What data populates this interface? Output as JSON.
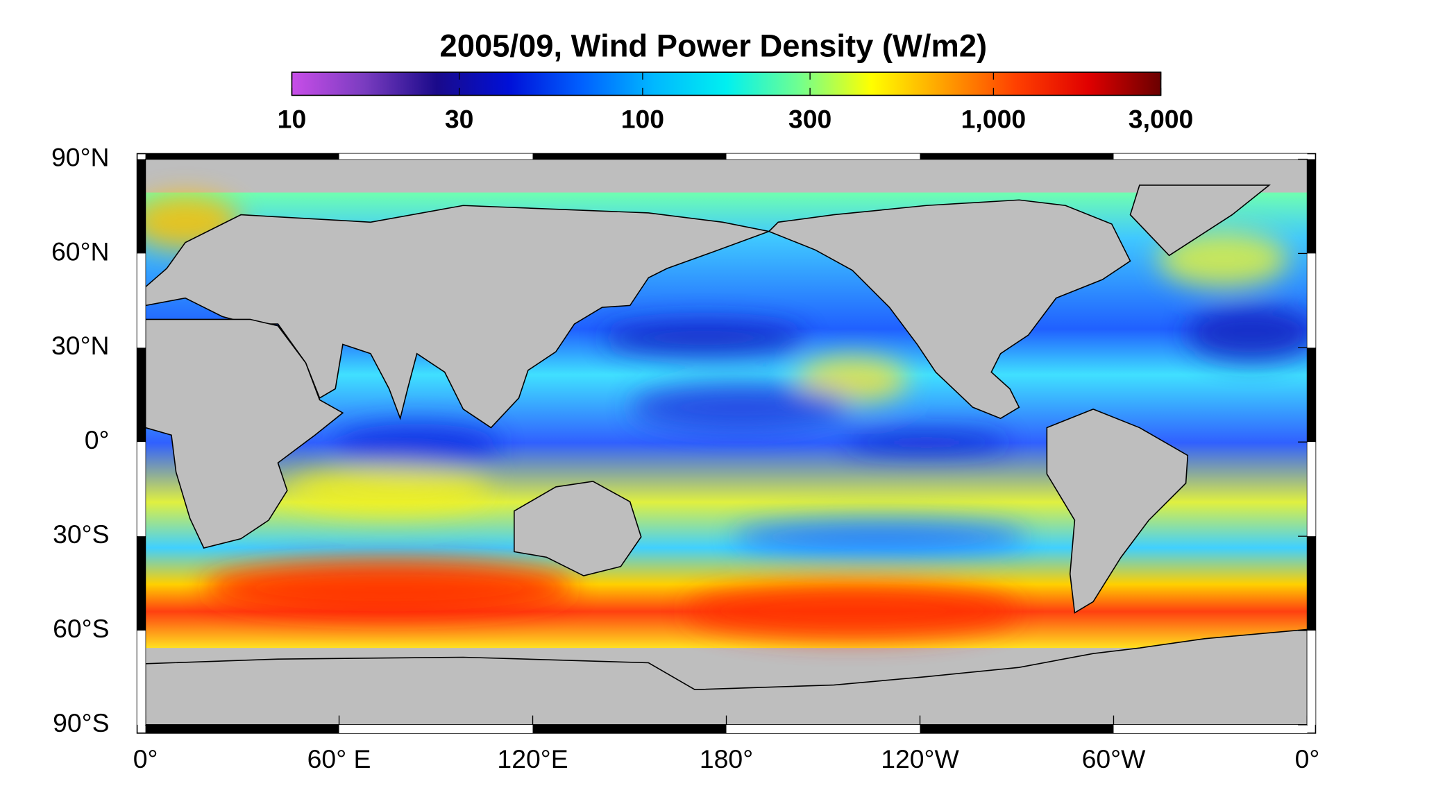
{
  "chart_data": {
    "type": "map",
    "title": "2005/09, Wind Power Density (W/m2)",
    "colorbar": {
      "scale": "log",
      "lim": [
        10,
        3000
      ],
      "ticks": [
        10,
        30,
        100,
        300,
        {
          "value": 1000,
          "label": "1,000"
        },
        {
          "value": 3000,
          "label": "3,000"
        }
      ],
      "colormap": [
        "#c84ee8",
        "#7a3cc0",
        "#1a0a8a",
        "#0010d8",
        "#0060ff",
        "#00b8ff",
        "#00f0f0",
        "#70ff90",
        "#ffff00",
        "#ffa000",
        "#ff4000",
        "#e00000",
        "#6a0000"
      ]
    },
    "lat_ticks": [
      {
        "value": 90,
        "label": "90°N"
      },
      {
        "value": 60,
        "label": "60°N"
      },
      {
        "value": 30,
        "label": "30°N"
      },
      {
        "value": 0,
        "label": "0°"
      },
      {
        "value": -30,
        "label": "30°S"
      },
      {
        "value": -60,
        "label": "60°S"
      },
      {
        "value": -90,
        "label": "90°S"
      }
    ],
    "lon_ticks": [
      {
        "value": 0,
        "label": "0°"
      },
      {
        "value": 60,
        "label": "60° E"
      },
      {
        "value": 120,
        "label": "120°E"
      },
      {
        "value": 180,
        "label": "180°"
      },
      {
        "value": 240,
        "label": "120°W"
      },
      {
        "value": 300,
        "label": "60°W"
      },
      {
        "value": 360,
        "label": "0°"
      }
    ],
    "land_color": "#bebebe"
  }
}
